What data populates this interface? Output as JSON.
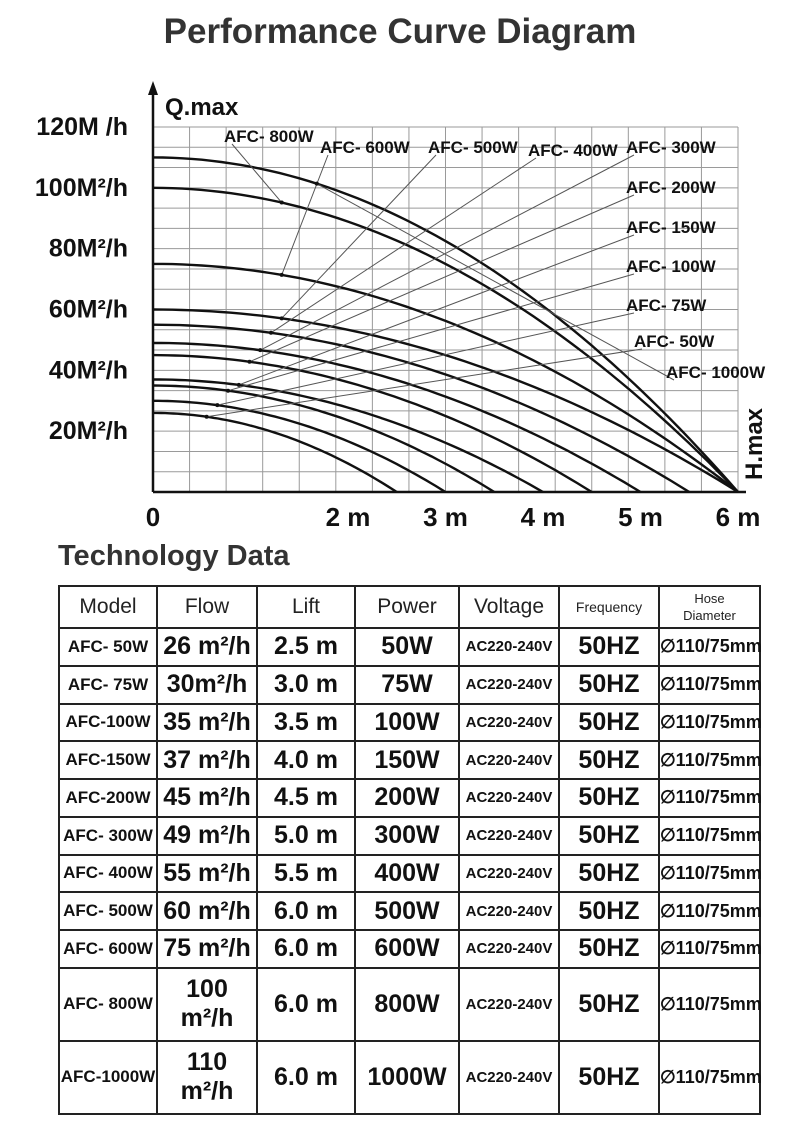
{
  "page": {
    "title": "Performance Curve Diagram"
  },
  "chart_data": {
    "type": "line",
    "title": "Performance Curve Diagram",
    "y_axis_title": "Q.max",
    "x_axis_title": "H.max",
    "y_tick_labels": [
      "120M /h",
      "100M²/h",
      "80M²/h",
      "60M²/h",
      "40M²/h",
      "20M²/h"
    ],
    "x_tick_labels": [
      "0",
      "2 m",
      "3 m",
      "4 m",
      "5 m",
      "6 m"
    ],
    "x_ticks": [
      0,
      2,
      3,
      4,
      5,
      6
    ],
    "xlim": [
      0,
      6
    ],
    "ylim": [
      0,
      120
    ],
    "grid": true,
    "series": [
      {
        "name": "AFC- 50W",
        "flow": 26,
        "head": 2.5
      },
      {
        "name": "AFC- 75W",
        "flow": 30,
        "head": 3.0
      },
      {
        "name": "AFC- 100W",
        "flow": 35,
        "head": 3.5
      },
      {
        "name": "AFC- 150W",
        "flow": 37,
        "head": 4.0
      },
      {
        "name": "AFC- 200W",
        "flow": 45,
        "head": 4.5
      },
      {
        "name": "AFC- 300W",
        "flow": 49,
        "head": 5.0
      },
      {
        "name": "AFC- 400W",
        "flow": 55,
        "head": 5.5
      },
      {
        "name": "AFC- 500W",
        "flow": 60,
        "head": 6.0
      },
      {
        "name": "AFC- 600W",
        "flow": 75,
        "head": 6.0
      },
      {
        "name": "AFC- 800W",
        "flow": 100,
        "head": 6.0
      },
      {
        "name": "AFC- 1000W",
        "flow": 110,
        "head": 6.0
      }
    ]
  },
  "table": {
    "title": "Technology Data",
    "headers": {
      "model": "Model",
      "flow": "Flow",
      "lift": "Lift",
      "power": "Power",
      "voltage": "Voltage",
      "frequency": "Frequency",
      "hose_line1": "Hose",
      "hose_line2": "Diameter"
    },
    "rows": [
      {
        "model": "AFC- 50W",
        "flow": "26 m²/h",
        "lift": "2.5 m",
        "power": "50W",
        "voltage": "AC220-240V",
        "frequency": "50HZ",
        "hose": "∅110/75mm"
      },
      {
        "model": "AFC- 75W",
        "flow": "30m²/h",
        "lift": "3.0 m",
        "power": "75W",
        "voltage": "AC220-240V",
        "frequency": "50HZ",
        "hose": "∅110/75mm"
      },
      {
        "model": "AFC-100W",
        "flow": "35 m²/h",
        "lift": "3.5 m",
        "power": "100W",
        "voltage": "AC220-240V",
        "frequency": "50HZ",
        "hose": "∅110/75mm"
      },
      {
        "model": "AFC-150W",
        "flow": "37 m²/h",
        "lift": "4.0 m",
        "power": "150W",
        "voltage": "AC220-240V",
        "frequency": "50HZ",
        "hose": "∅110/75mm"
      },
      {
        "model": "AFC-200W",
        "flow": "45 m²/h",
        "lift": "4.5 m",
        "power": "200W",
        "voltage": "AC220-240V",
        "frequency": "50HZ",
        "hose": "∅110/75mm"
      },
      {
        "model": "AFC- 300W",
        "flow": "49 m²/h",
        "lift": "5.0 m",
        "power": "300W",
        "voltage": "AC220-240V",
        "frequency": "50HZ",
        "hose": "∅110/75mm"
      },
      {
        "model": "AFC- 400W",
        "flow": "55 m²/h",
        "lift": "5.5 m",
        "power": "400W",
        "voltage": "AC220-240V",
        "frequency": "50HZ",
        "hose": "∅110/75mm"
      },
      {
        "model": "AFC- 500W",
        "flow": "60 m²/h",
        "lift": "6.0 m",
        "power": "500W",
        "voltage": "AC220-240V",
        "frequency": "50HZ",
        "hose": "∅110/75mm"
      },
      {
        "model": "AFC- 600W",
        "flow": "75 m²/h",
        "lift": "6.0 m",
        "power": "600W",
        "voltage": "AC220-240V",
        "frequency": "50HZ",
        "hose": "∅110/75mm"
      },
      {
        "model": "AFC- 800W",
        "flow": "100 m²/h",
        "lift": "6.0 m",
        "power": "800W",
        "voltage": "AC220-240V",
        "frequency": "50HZ",
        "hose": "∅110/75mm"
      },
      {
        "model": "AFC-1000W",
        "flow": "110 m²/h",
        "lift": "6.0 m",
        "power": "1000W",
        "voltage": "AC220-240V",
        "frequency": "50HZ",
        "hose": "∅110/75mm"
      }
    ]
  }
}
